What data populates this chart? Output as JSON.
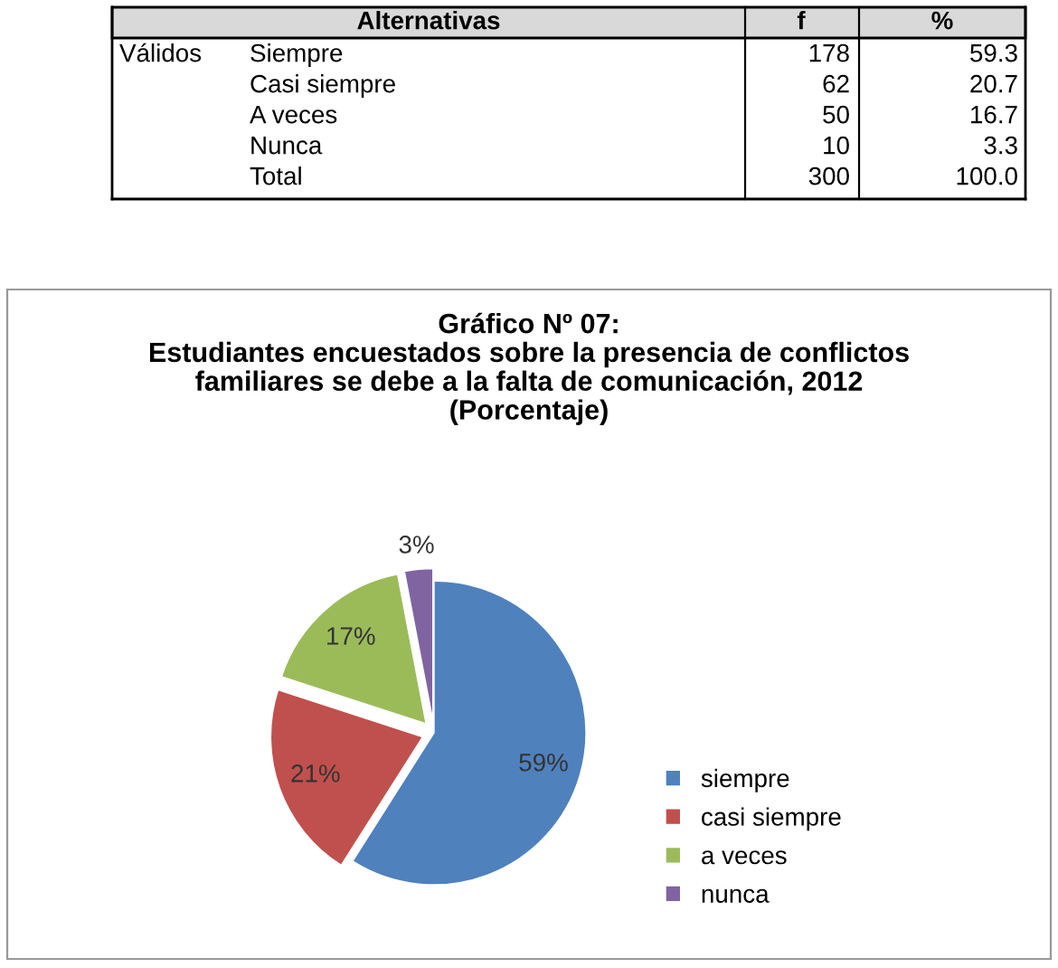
{
  "chart_data": [
    {
      "type": "other",
      "categories": [
        "Alternativas",
        "f",
        "%"
      ],
      "cell_labels": [
        [
          "Válidos",
          "Siempre",
          "178",
          "59.3"
        ],
        [
          null,
          "Casi siempre",
          "62",
          "20.7"
        ],
        [
          null,
          "A veces",
          "50",
          "16.7"
        ],
        [
          null,
          "Nunca",
          "10",
          "3.3"
        ],
        [
          null,
          "Total",
          "300",
          "100.0"
        ]
      ]
    },
    {
      "type": "pie",
      "title": "Gráfico Nº 07:\nEstudiantes encuestados sobre la presencia de conflictos\nfamiliares se debe a la falta de comunicación, 2012\n(Porcentaje)",
      "categories": [
        "siempre",
        "casi siempre",
        "a veces",
        "nunca"
      ],
      "values": [
        59,
        21,
        17,
        3
      ],
      "colors": [
        "#4f81bd",
        "#c0504d",
        "#9bbb59",
        "#8064a2"
      ],
      "value_labels": [
        "59%",
        "21%",
        "17%",
        "3%"
      ],
      "legend": "bottom right"
    }
  ]
}
